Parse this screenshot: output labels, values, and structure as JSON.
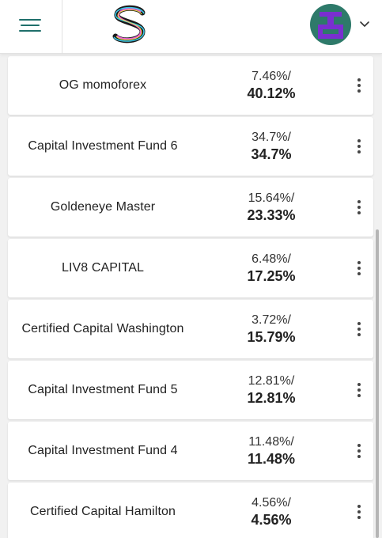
{
  "header": {
    "menu_icon": "hamburger-menu-icon",
    "logo_icon": "s-logo-icon",
    "avatar_icon": "pixel-avatar-icon",
    "chevron_icon": "chevron-down-icon"
  },
  "funds": [
    {
      "name": "OG momoforex",
      "return_a": "7.46%/",
      "return_b": "40.12%"
    },
    {
      "name": "Capital Investment Fund 6",
      "return_a": "34.7%/",
      "return_b": "34.7%"
    },
    {
      "name": "Goldeneye Master",
      "return_a": "15.64%/",
      "return_b": "23.33%"
    },
    {
      "name": "LIV8 CAPITAL",
      "return_a": "6.48%/",
      "return_b": "17.25%"
    },
    {
      "name": "Certified Capital Washington",
      "return_a": "3.72%/",
      "return_b": "15.79%"
    },
    {
      "name": "Capital Investment Fund 5",
      "return_a": "12.81%/",
      "return_b": "12.81%"
    },
    {
      "name": "Capital Investment Fund 4",
      "return_a": "11.48%/",
      "return_b": "11.48%"
    },
    {
      "name": "Certified Capital Hamilton",
      "return_a": "4.56%/",
      "return_b": "4.56%"
    }
  ],
  "colors": {
    "menu_accent": "#1f6f6b",
    "avatar_bg": "#2e7a6a",
    "avatar_fg": "#7a2fd0"
  }
}
